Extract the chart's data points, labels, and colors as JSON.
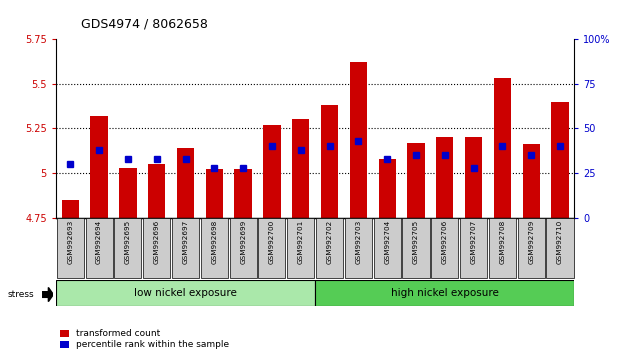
{
  "title": "GDS4974 / 8062658",
  "samples": [
    "GSM992693",
    "GSM992694",
    "GSM992695",
    "GSM992696",
    "GSM992697",
    "GSM992698",
    "GSM992699",
    "GSM992700",
    "GSM992701",
    "GSM992702",
    "GSM992703",
    "GSM992704",
    "GSM992705",
    "GSM992706",
    "GSM992707",
    "GSM992708",
    "GSM992709",
    "GSM992710"
  ],
  "transformed_count": [
    4.85,
    5.32,
    5.03,
    5.05,
    5.14,
    5.02,
    5.02,
    5.27,
    5.3,
    5.38,
    5.62,
    5.08,
    5.17,
    5.2,
    5.2,
    5.53,
    5.16,
    5.4
  ],
  "percentile_rank": [
    30,
    38,
    33,
    33,
    33,
    28,
    28,
    40,
    38,
    40,
    43,
    33,
    35,
    35,
    28,
    40,
    35,
    40
  ],
  "ylim_left": [
    4.75,
    5.75
  ],
  "ylim_right": [
    0,
    100
  ],
  "yticks_left": [
    4.75,
    5.0,
    5.25,
    5.5,
    5.75
  ],
  "yticks_right": [
    0,
    25,
    50,
    75,
    100
  ],
  "ytick_labels_left": [
    "4.75",
    "5",
    "5.25",
    "5.5",
    "5.75"
  ],
  "ytick_labels_right": [
    "0",
    "25",
    "50",
    "75",
    "100%"
  ],
  "hlines": [
    5.0,
    5.25,
    5.5
  ],
  "bar_color": "#cc0000",
  "blue_color": "#0000cc",
  "bar_bottom": 4.75,
  "group_boundary": 9,
  "low_label": "low nickel exposure",
  "high_label": "high nickel exposure",
  "stress_label": "stress",
  "legend_red": "transformed count",
  "legend_blue": "percentile rank within the sample",
  "low_group_color": "#aae8aa",
  "high_group_color": "#55cc55",
  "tick_label_bg": "#cccccc",
  "title_fontsize": 9,
  "bar_width": 0.6
}
